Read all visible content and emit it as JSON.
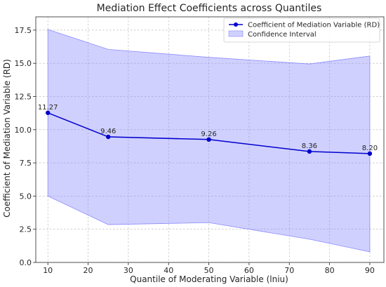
{
  "chart_data": {
    "type": "line",
    "title": "Mediation Effect Coefficients across Quantiles",
    "xlabel": "Quantile of Moderating Variable (lniu)",
    "ylabel": "Coefficient of Mediation Variable (RD)",
    "x": [
      10,
      25,
      50,
      75,
      90
    ],
    "series": [
      {
        "name": "Coefficient of Mediation Variable (RD)",
        "values": [
          11.27,
          9.46,
          9.26,
          8.36,
          8.2
        ],
        "labels": [
          "11.27",
          "9.46",
          "9.26",
          "8.36",
          "8.20"
        ],
        "color": "#0000cc"
      }
    ],
    "confidence_interval": {
      "name": "Confidence Interval",
      "lower": [
        5.0,
        2.85,
        3.0,
        1.75,
        0.8
      ],
      "upper": [
        17.55,
        16.05,
        15.45,
        14.95,
        15.55
      ],
      "color": "#8a8aff"
    },
    "xlim": [
      7,
      93.5
    ],
    "ylim": [
      0,
      18.5
    ],
    "xticks": [
      10,
      20,
      30,
      40,
      50,
      60,
      70,
      80,
      90
    ],
    "xtick_labels": [
      "10",
      "20",
      "30",
      "40",
      "50",
      "60",
      "70",
      "80",
      "90"
    ],
    "yticks": [
      0,
      2.5,
      5,
      7.5,
      10,
      12.5,
      15,
      17.5
    ],
    "ytick_labels": [
      "0.0",
      "2.5",
      "5.0",
      "7.5",
      "10.0",
      "12.5",
      "15.0",
      "17.5"
    ],
    "grid": true,
    "legend_position": "top-right"
  }
}
